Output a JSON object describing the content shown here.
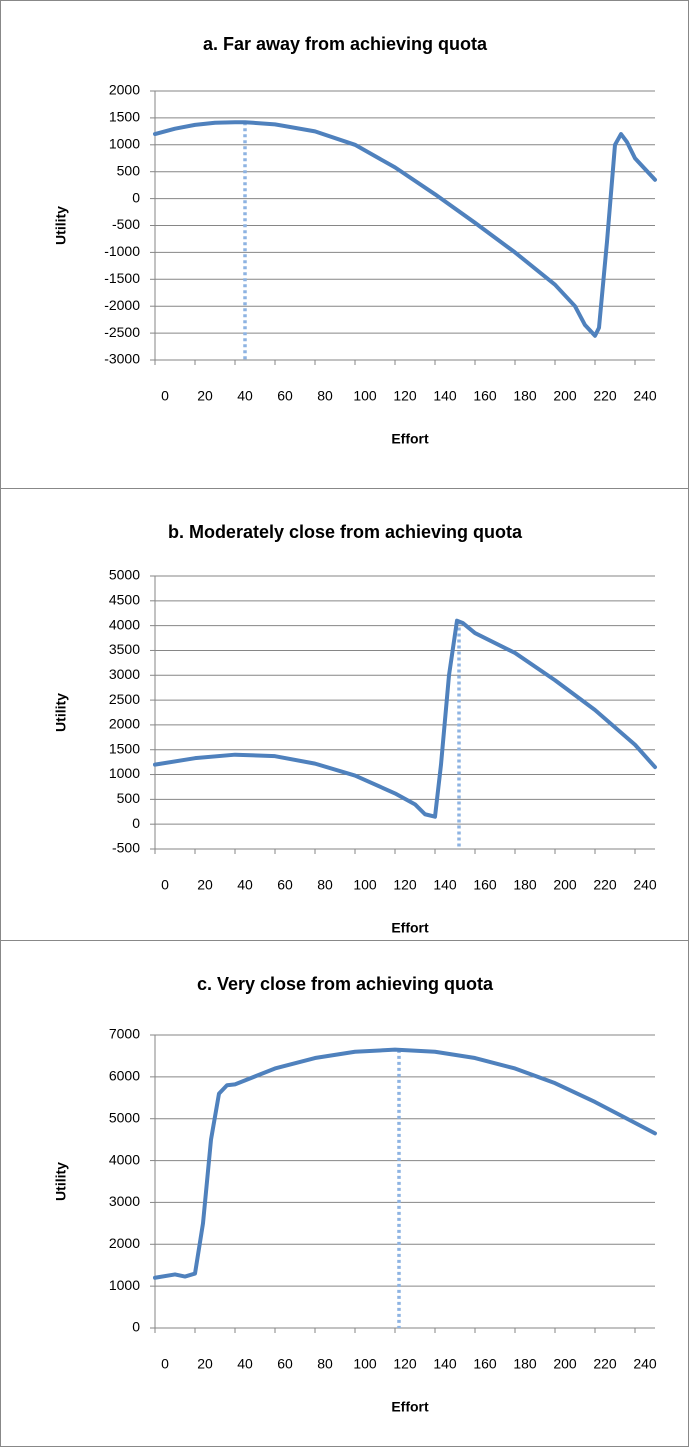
{
  "chart_data": [
    {
      "type": "line",
      "title": "a. Far away from achieving quota",
      "x_label": "Effort",
      "y_label": "Utility",
      "x": [
        0,
        10,
        20,
        30,
        40,
        45,
        60,
        80,
        100,
        120,
        140,
        160,
        180,
        200,
        210,
        215,
        220,
        222,
        226,
        230,
        233,
        236,
        240,
        250
      ],
      "values": [
        1200,
        1300,
        1370,
        1410,
        1420,
        1420,
        1380,
        1250,
        1000,
        580,
        80,
        -450,
        -1000,
        -1600,
        -2000,
        -2350,
        -2550,
        -2400,
        -800,
        1000,
        1200,
        1050,
        750,
        350
      ],
      "color": "#4f81bd",
      "vline": 45,
      "vline_color": "#8db3e2",
      "xlim": [
        0,
        250
      ],
      "xticks": [
        0,
        20,
        40,
        60,
        80,
        100,
        120,
        140,
        160,
        180,
        200,
        220,
        240
      ],
      "ylim": [
        -3000,
        2000
      ],
      "yticks": [
        -3000,
        -2500,
        -2000,
        -1500,
        -1000,
        -500,
        0,
        500,
        1000,
        1500,
        2000
      ],
      "grid": true
    },
    {
      "type": "line",
      "title": "b. Moderately close from achieving quota",
      "x_label": "Effort",
      "y_label": "Utility",
      "x": [
        0,
        20,
        40,
        60,
        80,
        100,
        120,
        130,
        135,
        140,
        143,
        147,
        151,
        154,
        160,
        180,
        200,
        220,
        240,
        250
      ],
      "values": [
        1200,
        1330,
        1400,
        1370,
        1220,
        980,
        620,
        400,
        200,
        150,
        1200,
        3000,
        4100,
        4050,
        3850,
        3450,
        2900,
        2300,
        1600,
        1150
      ],
      "color": "#4f81bd",
      "vline": 152,
      "vline_color": "#8db3e2",
      "xlim": [
        0,
        250
      ],
      "xticks": [
        0,
        20,
        40,
        60,
        80,
        100,
        120,
        140,
        160,
        180,
        200,
        220,
        240
      ],
      "ylim": [
        -500,
        5000
      ],
      "yticks": [
        -500,
        0,
        500,
        1000,
        1500,
        2000,
        2500,
        3000,
        3500,
        4000,
        4500,
        5000
      ],
      "grid": true
    },
    {
      "type": "line",
      "title": "c. Very close from achieving quota",
      "x_label": "Effort",
      "y_label": "Utility",
      "x": [
        0,
        10,
        15,
        20,
        24,
        28,
        32,
        36,
        40,
        60,
        80,
        100,
        120,
        140,
        160,
        180,
        200,
        220,
        240,
        250
      ],
      "values": [
        1200,
        1280,
        1230,
        1300,
        2500,
        4500,
        5600,
        5800,
        5820,
        6200,
        6450,
        6600,
        6650,
        6600,
        6450,
        6200,
        5850,
        5400,
        4900,
        4650
      ],
      "color": "#4f81bd",
      "vline": 122,
      "vline_color": "#8db3e2",
      "xlim": [
        0,
        250
      ],
      "xticks": [
        0,
        20,
        40,
        60,
        80,
        100,
        120,
        140,
        160,
        180,
        200,
        220,
        240
      ],
      "ylim": [
        0,
        7000
      ],
      "yticks": [
        0,
        1000,
        2000,
        3000,
        4000,
        5000,
        6000,
        7000
      ],
      "grid": true
    }
  ]
}
